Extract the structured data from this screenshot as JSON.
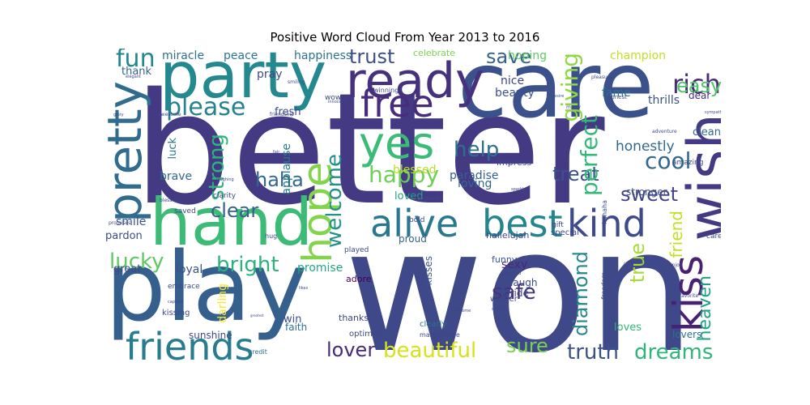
{
  "title": "Positive Word Cloud From Year 2013 to 2016",
  "colors": {
    "background": "#ffffff"
  },
  "words": [
    {
      "text": "better",
      "color": "#433a83"
    },
    {
      "text": "won",
      "color": "#3f4889"
    },
    {
      "text": "care",
      "color": "#3b518b"
    },
    {
      "text": "party",
      "color": "#23898e"
    },
    {
      "text": "play",
      "color": "#355f8d"
    },
    {
      "text": "hand",
      "color": "#3bbb75"
    },
    {
      "text": "ready",
      "color": "#46317e"
    },
    {
      "text": "wish",
      "color": "#443a83"
    },
    {
      "text": "pretty",
      "color": "#2f6c8e"
    },
    {
      "text": "alive",
      "color": "#2a788e"
    },
    {
      "text": "best",
      "color": "#25858e"
    },
    {
      "text": "kind",
      "color": "#3e4a89"
    },
    {
      "text": "free",
      "color": "#472d7b"
    },
    {
      "text": "yes",
      "color": "#3bbb75"
    },
    {
      "text": "hope",
      "color": "#84d44b"
    },
    {
      "text": "friends",
      "color": "#287c8e"
    },
    {
      "text": "kiss",
      "color": "#482173"
    },
    {
      "text": "please",
      "color": "#26828e"
    },
    {
      "text": "fun",
      "color": "#24878e"
    },
    {
      "text": "rich",
      "color": "#472c7a"
    },
    {
      "text": "trust",
      "color": "#3d4e8a"
    },
    {
      "text": "save",
      "color": "#33638d"
    },
    {
      "text": "easy",
      "color": "#52c569"
    },
    {
      "text": "help",
      "color": "#2d708e"
    },
    {
      "text": "happy",
      "color": "#6ece58"
    },
    {
      "text": "cool",
      "color": "#31688e"
    },
    {
      "text": "sweet",
      "color": "#414487"
    },
    {
      "text": "haha",
      "color": "#31688e"
    },
    {
      "text": "treat",
      "color": "#3b528b"
    },
    {
      "text": "perfect",
      "color": "#35b779"
    },
    {
      "text": "giving",
      "color": "#8fd744"
    },
    {
      "text": "strong",
      "color": "#2fb47c"
    },
    {
      "text": "welcome",
      "color": "#21918c"
    },
    {
      "text": "lucky",
      "color": "#5ec962"
    },
    {
      "text": "bright",
      "color": "#2db27d"
    },
    {
      "text": "clear",
      "color": "#355f8d"
    },
    {
      "text": "beautiful",
      "color": "#d8e219"
    },
    {
      "text": "truth",
      "color": "#3b528b"
    },
    {
      "text": "dreams",
      "color": "#2fb47c"
    },
    {
      "text": "lover",
      "color": "#472a7a"
    },
    {
      "text": "sure",
      "color": "#7ad151"
    },
    {
      "text": "safe",
      "color": "#46337e"
    },
    {
      "text": "true",
      "color": "#a8db34"
    },
    {
      "text": "diamond",
      "color": "#24878e"
    },
    {
      "text": "heaven",
      "color": "#1fa187"
    },
    {
      "text": "friend",
      "color": "#c2df23"
    },
    {
      "text": "honestly",
      "color": "#31688e"
    },
    {
      "text": "miracle",
      "color": "#2c728e"
    },
    {
      "text": "peace",
      "color": "#2a768e"
    },
    {
      "text": "happiness",
      "color": "#2c728e"
    },
    {
      "text": "hoping",
      "color": "#5ec962"
    },
    {
      "text": "champion",
      "color": "#c2df23"
    },
    {
      "text": "nice",
      "color": "#414487"
    },
    {
      "text": "beauty",
      "color": "#3b528b"
    },
    {
      "text": "fame",
      "color": "#2c728e"
    },
    {
      "text": "thrills",
      "color": "#3b528b"
    },
    {
      "text": "dear",
      "color": "#472c7a"
    },
    {
      "text": "clean",
      "color": "#31688e"
    },
    {
      "text": "thank",
      "color": "#33638d"
    },
    {
      "text": "pray",
      "color": "#3e4989"
    },
    {
      "text": "fresh",
      "color": "#3e4989"
    },
    {
      "text": "celebrate",
      "color": "#7ad151"
    },
    {
      "text": "applause",
      "color": "#2a788e"
    },
    {
      "text": "blessed",
      "color": "#bade28"
    },
    {
      "text": "loved",
      "color": "#20a386"
    },
    {
      "text": "paradise",
      "color": "#355f8d"
    },
    {
      "text": "loving",
      "color": "#31688e"
    },
    {
      "text": "brave",
      "color": "#31688e"
    },
    {
      "text": "luck",
      "color": "#2a788e"
    },
    {
      "text": "smile",
      "color": "#3b528b"
    },
    {
      "text": "great",
      "color": "#3e4989"
    },
    {
      "text": "pardon",
      "color": "#3e4989"
    },
    {
      "text": "promise",
      "color": "#22a884"
    },
    {
      "text": "sexy",
      "color": "#482878"
    },
    {
      "text": "laugh",
      "color": "#3e4989"
    },
    {
      "text": "pride",
      "color": "#3e4989"
    },
    {
      "text": "loyal",
      "color": "#3b528b"
    },
    {
      "text": "darling",
      "color": "#fde725"
    },
    {
      "text": "win",
      "color": "#3b528b"
    },
    {
      "text": "faith",
      "color": "#2c728e"
    },
    {
      "text": "stronger",
      "color": "#3b528b"
    },
    {
      "text": "loves",
      "color": "#35b779"
    },
    {
      "text": "lovers",
      "color": "#2c728e"
    },
    {
      "text": "sunshine",
      "color": "#3e4989"
    },
    {
      "text": "thanks",
      "color": "#3e4989"
    },
    {
      "text": "adore",
      "color": "#440154"
    },
    {
      "text": "proud",
      "color": "#355f8d"
    },
    {
      "text": "kisses",
      "color": "#3b528b"
    },
    {
      "text": "hallelujah",
      "color": "#3e4989"
    },
    {
      "text": "funny",
      "color": "#3b528b"
    },
    {
      "text": "impress",
      "color": "#3e4989"
    },
    {
      "text": "special",
      "color": "#3e4989"
    },
    {
      "text": "amazing",
      "color": "#3e4989"
    },
    {
      "text": "wow",
      "color": "#3e4989"
    },
    {
      "text": "winning",
      "color": "#3e4989"
    },
    {
      "text": "optimist",
      "color": "#3e4989"
    },
    {
      "text": "clearly",
      "color": "#2c728e"
    },
    {
      "text": "winner",
      "color": "#3e4989"
    },
    {
      "text": "gift",
      "color": "#3e4989"
    },
    {
      "text": "saved",
      "color": "#3e4989"
    },
    {
      "text": "clarity",
      "color": "#3e4989"
    },
    {
      "text": "hug",
      "color": "#3e4989"
    },
    {
      "text": "played",
      "color": "#3e4989"
    },
    {
      "text": "bold",
      "color": "#3e4989"
    },
    {
      "text": "kissing",
      "color": "#3e4989"
    },
    {
      "text": "embrace",
      "color": "#3e4989"
    },
    {
      "text": "credit",
      "color": "#2c728e"
    },
    {
      "text": "masterpiece",
      "color": "#3e4989"
    },
    {
      "text": "freedom",
      "color": "#3e4989"
    },
    {
      "text": "fit",
      "color": "#3e4989"
    },
    {
      "text": "honest",
      "color": "#3e4989"
    },
    {
      "text": "enjoy",
      "color": "#3e4989"
    },
    {
      "text": "favorite",
      "color": "#3e4989"
    },
    {
      "text": "cares",
      "color": "#3e4989"
    },
    {
      "text": "promises",
      "color": "#3e4989"
    },
    {
      "text": "hahaha",
      "color": "#3e4989"
    },
    {
      "text": "pleasure",
      "color": "#3e4989"
    },
    {
      "text": "adventure",
      "color": "#3e4989"
    },
    {
      "text": "marry",
      "color": "#3e4989"
    },
    {
      "text": "blessings",
      "color": "#3e4989"
    },
    {
      "text": "laughing",
      "color": "#3e4989"
    },
    {
      "text": "awesome",
      "color": "#3e4989"
    },
    {
      "text": "elegant",
      "color": "#3e4989"
    },
    {
      "text": "sparkle",
      "color": "#3e4989"
    },
    {
      "text": "brightest",
      "color": "#3e4989"
    },
    {
      "text": "glory",
      "color": "#3e4989"
    },
    {
      "text": "relief",
      "color": "#3e4989"
    },
    {
      "text": "handsome",
      "color": "#3e4989"
    },
    {
      "text": "satisfied",
      "color": "#3e4989"
    },
    {
      "text": "smiling",
      "color": "#3e4989"
    },
    {
      "text": "friendship",
      "color": "#3e4989"
    },
    {
      "text": "sympathy",
      "color": "#3e4989"
    },
    {
      "text": "greatest",
      "color": "#3e4989"
    },
    {
      "text": "likes",
      "color": "#3e4989"
    },
    {
      "text": "capable",
      "color": "#3e4989"
    },
    {
      "text": "desire",
      "color": "#3e4989"
    },
    {
      "text": "innocent",
      "color": "#3e4989"
    },
    {
      "text": "fair",
      "color": "#3e4989"
    },
    {
      "text": "promised",
      "color": "#3e4989"
    },
    {
      "text": "comfortable",
      "color": "#3e4989"
    }
  ]
}
